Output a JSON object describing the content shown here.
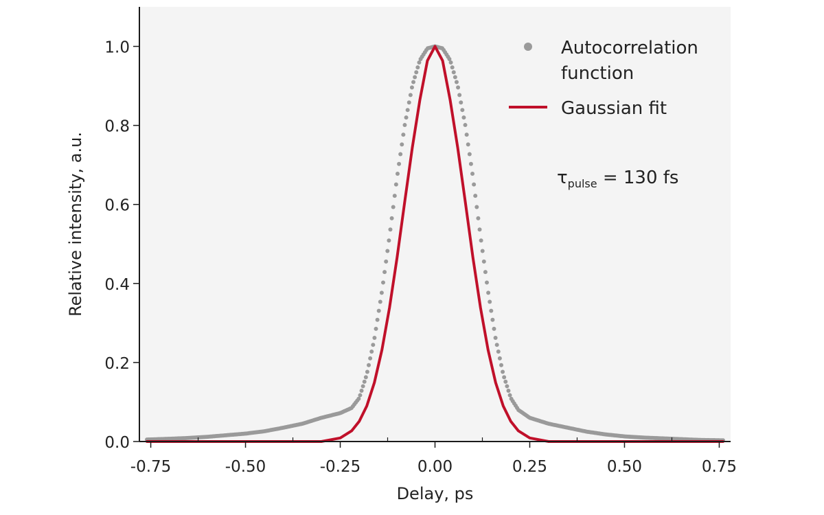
{
  "chart_data": {
    "type": "line",
    "xlabel": "Delay, ps",
    "ylabel": "Relative intensity, a.u.",
    "xlim": [
      -0.78,
      0.78
    ],
    "ylim": [
      0.0,
      1.1
    ],
    "x_ticks": [
      -0.75,
      -0.5,
      -0.25,
      0.0,
      0.25,
      0.5,
      0.75
    ],
    "x_tick_labels": [
      "-0.75",
      "-0.50",
      "-0.25",
      "0.00",
      "0.25",
      "0.50",
      "0.75"
    ],
    "x_minor_ticks": [
      -0.625,
      -0.375,
      -0.125,
      0.125,
      0.375,
      0.625
    ],
    "y_ticks": [
      0.0,
      0.2,
      0.4,
      0.6,
      0.8,
      1.0
    ],
    "y_tick_labels": [
      "0.0",
      "0.2",
      "0.4",
      "0.6",
      "0.8",
      "1.0"
    ],
    "grid": false,
    "legend_position": "top-right",
    "colors": {
      "plot_background": "#f4f4f4",
      "autocorrelation": "#9a9a9a",
      "gaussian_fit": "#c0102a",
      "axis": "#1a1a1a"
    },
    "series": [
      {
        "name": "Autocorrelation function",
        "style": "markers",
        "x": [
          -0.76,
          -0.7,
          -0.65,
          -0.6,
          -0.55,
          -0.5,
          -0.45,
          -0.4,
          -0.35,
          -0.3,
          -0.25,
          -0.22,
          -0.2,
          -0.18,
          -0.16,
          -0.14,
          -0.12,
          -0.1,
          -0.08,
          -0.06,
          -0.04,
          -0.02,
          0.0,
          0.02,
          0.04,
          0.06,
          0.08,
          0.1,
          0.12,
          0.14,
          0.16,
          0.18,
          0.2,
          0.22,
          0.25,
          0.3,
          0.35,
          0.4,
          0.45,
          0.5,
          0.55,
          0.6,
          0.65,
          0.7,
          0.76
        ],
        "y": [
          0.005,
          0.007,
          0.009,
          0.012,
          0.016,
          0.02,
          0.026,
          0.035,
          0.045,
          0.06,
          0.072,
          0.085,
          0.11,
          0.17,
          0.26,
          0.38,
          0.52,
          0.67,
          0.8,
          0.9,
          0.965,
          0.995,
          1.0,
          0.995,
          0.965,
          0.9,
          0.8,
          0.67,
          0.52,
          0.38,
          0.26,
          0.17,
          0.11,
          0.08,
          0.06,
          0.045,
          0.035,
          0.025,
          0.018,
          0.013,
          0.01,
          0.008,
          0.006,
          0.004,
          0.003
        ]
      },
      {
        "name": "Gaussian fit",
        "style": "line",
        "x": [
          -0.76,
          -0.4,
          -0.3,
          -0.25,
          -0.22,
          -0.2,
          -0.18,
          -0.16,
          -0.14,
          -0.12,
          -0.1,
          -0.08,
          -0.06,
          -0.04,
          -0.02,
          0.0,
          0.02,
          0.04,
          0.06,
          0.08,
          0.1,
          0.12,
          0.14,
          0.16,
          0.18,
          0.2,
          0.22,
          0.25,
          0.3,
          0.4,
          0.76
        ],
        "y": [
          0.0,
          0.0,
          0.0,
          0.009,
          0.027,
          0.051,
          0.09,
          0.149,
          0.232,
          0.339,
          0.466,
          0.606,
          0.743,
          0.864,
          0.964,
          1.0,
          0.964,
          0.864,
          0.743,
          0.606,
          0.466,
          0.339,
          0.232,
          0.149,
          0.09,
          0.051,
          0.027,
          0.009,
          0.0,
          0.0,
          0.0
        ]
      }
    ],
    "annotation": {
      "main": "τ",
      "subscript": "pulse",
      "rest": " = 130 fs"
    }
  }
}
